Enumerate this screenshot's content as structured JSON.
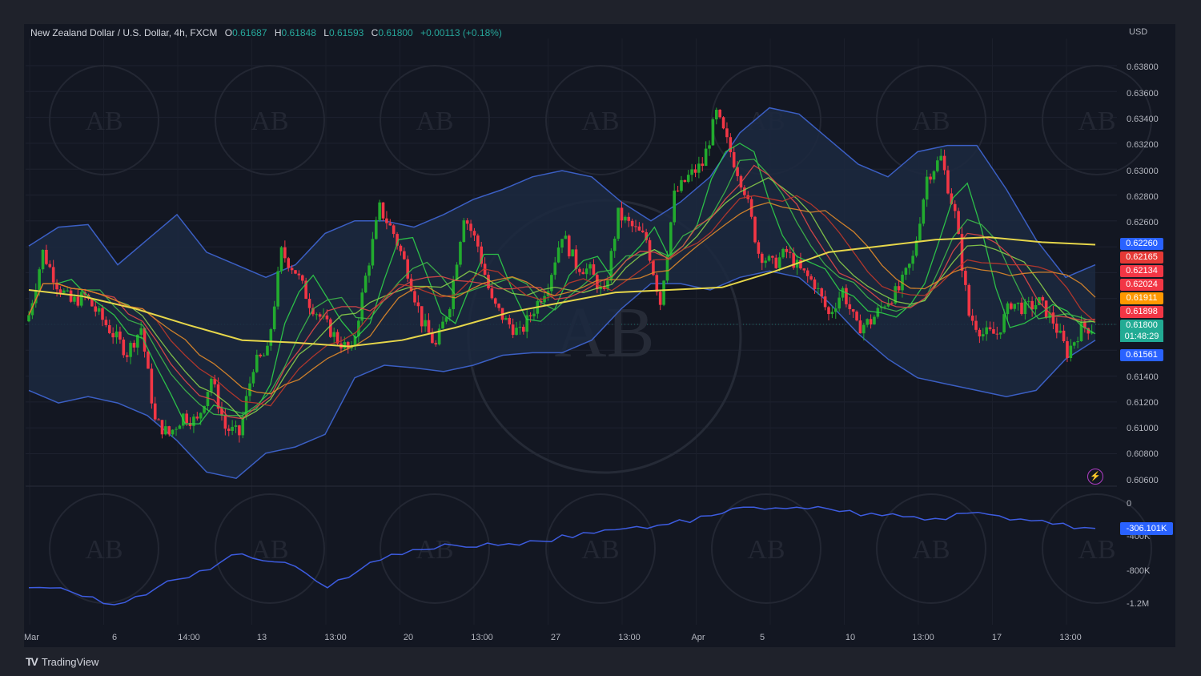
{
  "header": {
    "symbol": "New Zealand Dollar / U.S. Dollar, 4h, FXCM",
    "open_label": "O",
    "open": "0.61687",
    "high_label": "H",
    "high": "0.61848",
    "low_label": "L",
    "low": "0.61593",
    "close_label": "C",
    "close": "0.61800",
    "change": "+0.00113 (+0.18%)"
  },
  "currency": "USD",
  "price_axis": [
    "0.63800",
    "0.63600",
    "0.63400",
    "0.63200",
    "0.63000",
    "0.62800",
    "0.62600",
    "0.61400",
    "0.61200",
    "0.61000",
    "0.60800",
    "0.60600"
  ],
  "price_tags": [
    {
      "value": "0.62260",
      "color": "#2962ff"
    },
    {
      "value": "0.62165",
      "color": "#e53935"
    },
    {
      "value": "0.62134",
      "color": "#f23645"
    },
    {
      "value": "0.62024",
      "color": "#f23645"
    },
    {
      "value": "0.61911",
      "color": "#ff9800"
    },
    {
      "value": "0.61898",
      "color": "#f23645"
    },
    {
      "value": "0.61800",
      "color": "#22ab94"
    },
    {
      "value": "0.61561",
      "color": "#2962ff"
    }
  ],
  "countdown": "01:48:29",
  "indicator_axis": [
    "0",
    "-400K",
    "-800K",
    "-1.2M"
  ],
  "indicator_value": "-306.101K",
  "time_axis": [
    "Mar",
    "6",
    "14:00",
    "13",
    "13:00",
    "20",
    "13:00",
    "27",
    "13:00",
    "Apr",
    "5",
    "10",
    "13:00",
    "17",
    "13:00"
  ],
  "brand": "TradingView",
  "watermark": "AB",
  "colors": {
    "up": "#22ab2e",
    "down": "#f23645",
    "band": "#3b5fc4",
    "yellow": "#e6d64a",
    "orange": "#e08a2a",
    "indicator": "#3d5ce0"
  },
  "chart_data": {
    "type": "line",
    "title": "New Zealand Dollar / U.S. Dollar, 4h, FXCM",
    "ylabel": "USD",
    "ylim": [
      0.6055,
      0.6393
    ],
    "x_ticks": [
      "Mar",
      "6",
      "14:00",
      "13",
      "13:00",
      "20",
      "13:00",
      "27",
      "13:00",
      "Apr",
      "5",
      "10",
      "13:00",
      "17",
      "13:00"
    ],
    "series": [
      {
        "values": [
          0.619,
          0.624,
          0.6215,
          0.62,
          0.6205,
          0.619,
          0.6175,
          0.616,
          0.618,
          0.6105,
          0.6095,
          0.611,
          0.6105,
          0.614,
          0.61,
          0.6095,
          0.615,
          0.616,
          0.624,
          0.6225,
          0.62,
          0.6185,
          0.617,
          0.616,
          0.622,
          0.6275,
          0.6255,
          0.6225,
          0.6185,
          0.6165,
          0.62,
          0.627,
          0.6245,
          0.62,
          0.6185,
          0.6175,
          0.6195,
          0.6215,
          0.6255,
          0.623,
          0.6225,
          0.6205,
          0.627,
          0.626,
          0.625,
          0.62,
          0.6285,
          0.63,
          0.631,
          0.635,
          0.632,
          0.629,
          0.624,
          0.623,
          0.624,
          0.6225,
          0.6215,
          0.619,
          0.621,
          0.618,
          0.6185,
          0.62,
          0.621,
          0.6235,
          0.63,
          0.6315,
          0.627,
          0.619,
          0.6175,
          0.6175,
          0.62,
          0.6195,
          0.62,
          0.6185,
          0.616,
          0.618
        ]
      },
      {
        "name": "Upper band",
        "values": [
          0.6245,
          0.626,
          0.6262,
          0.623,
          0.625,
          0.627,
          0.624,
          0.623,
          0.622,
          0.623,
          0.6255,
          0.6265,
          0.6265,
          0.626,
          0.627,
          0.6282,
          0.629,
          0.63,
          0.6305,
          0.63,
          0.628,
          0.6265,
          0.628,
          0.63,
          0.6335,
          0.6355,
          0.635,
          0.633,
          0.631,
          0.63,
          0.632,
          0.6325,
          0.6325,
          0.629,
          0.625,
          0.622,
          0.623
        ]
      },
      {
        "name": "Lower band",
        "values": [
          0.613,
          0.612,
          0.6125,
          0.612,
          0.611,
          0.609,
          0.6065,
          0.606,
          0.608,
          0.6085,
          0.6095,
          0.614,
          0.615,
          0.6148,
          0.6145,
          0.615,
          0.6158,
          0.616,
          0.616,
          0.617,
          0.6195,
          0.6215,
          0.6215,
          0.621,
          0.622,
          0.6225,
          0.622,
          0.62,
          0.6175,
          0.6155,
          0.614,
          0.6135,
          0.613,
          0.6125,
          0.613,
          0.6155,
          0.617
        ]
      },
      {
        "name": "Yellow MA",
        "values": [
          0.621,
          0.6205,
          0.6195,
          0.6182,
          0.617,
          0.6168,
          0.6165,
          0.617,
          0.618,
          0.6192,
          0.62,
          0.6208,
          0.621,
          0.6212,
          0.6225,
          0.624,
          0.6245,
          0.625,
          0.6252,
          0.6248,
          0.6246
        ]
      },
      {
        "name": "Indicator",
        "values": [
          -1.0,
          -1.05,
          -1.2,
          -1.0,
          -0.8,
          -0.6,
          -0.7,
          -1.0,
          -0.7,
          -0.55,
          -0.5,
          -0.5,
          -0.45,
          -0.35,
          -0.3,
          -0.25,
          -0.15,
          -0.05,
          -0.05,
          -0.1,
          -0.15,
          -0.2,
          -0.12,
          -0.2,
          -0.25,
          -0.3
        ]
      }
    ]
  }
}
